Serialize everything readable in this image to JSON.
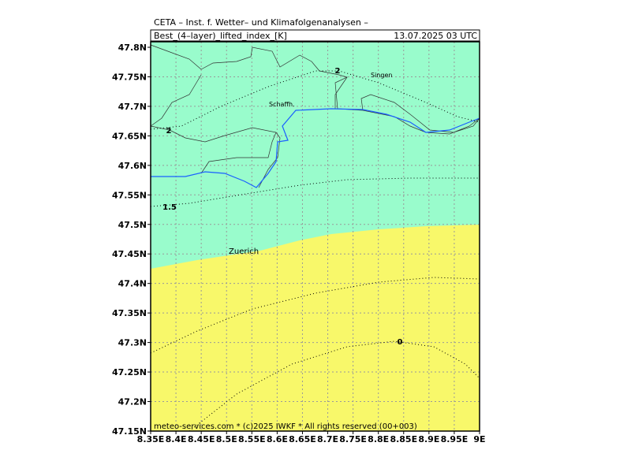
{
  "header": {
    "institute": "CETA – Inst. f. Wetter– und Klimafolgenanalysen –",
    "field": "Best_(4–layer)_lifted_index_[K]",
    "datetime": "13.07.2025 03 UTC"
  },
  "footer": "meteo-services.com * (c)2025 IWKF * All rights reserved (00+003)",
  "axes": {
    "y_labels": [
      "47.8N",
      "47.75N",
      "47.7N",
      "47.65N",
      "47.6N",
      "47.55N",
      "47.5N",
      "47.45N",
      "47.4N",
      "47.35N",
      "47.3N",
      "47.25N",
      "47.2N",
      "47.15N"
    ],
    "x_labels": [
      "8.35E",
      "8.4E",
      "8.45E",
      "8.5E",
      "8.55E",
      "8.6E",
      "8.65E",
      "8.7E",
      "8.75E",
      "8.8E",
      "8.85E",
      "8.9E",
      "8.95E",
      "9E"
    ]
  },
  "contour_labels": [
    "2",
    "2",
    "1.5",
    "0"
  ],
  "places": [
    "Singen",
    "Schaffh.",
    "Zuerich"
  ]
}
